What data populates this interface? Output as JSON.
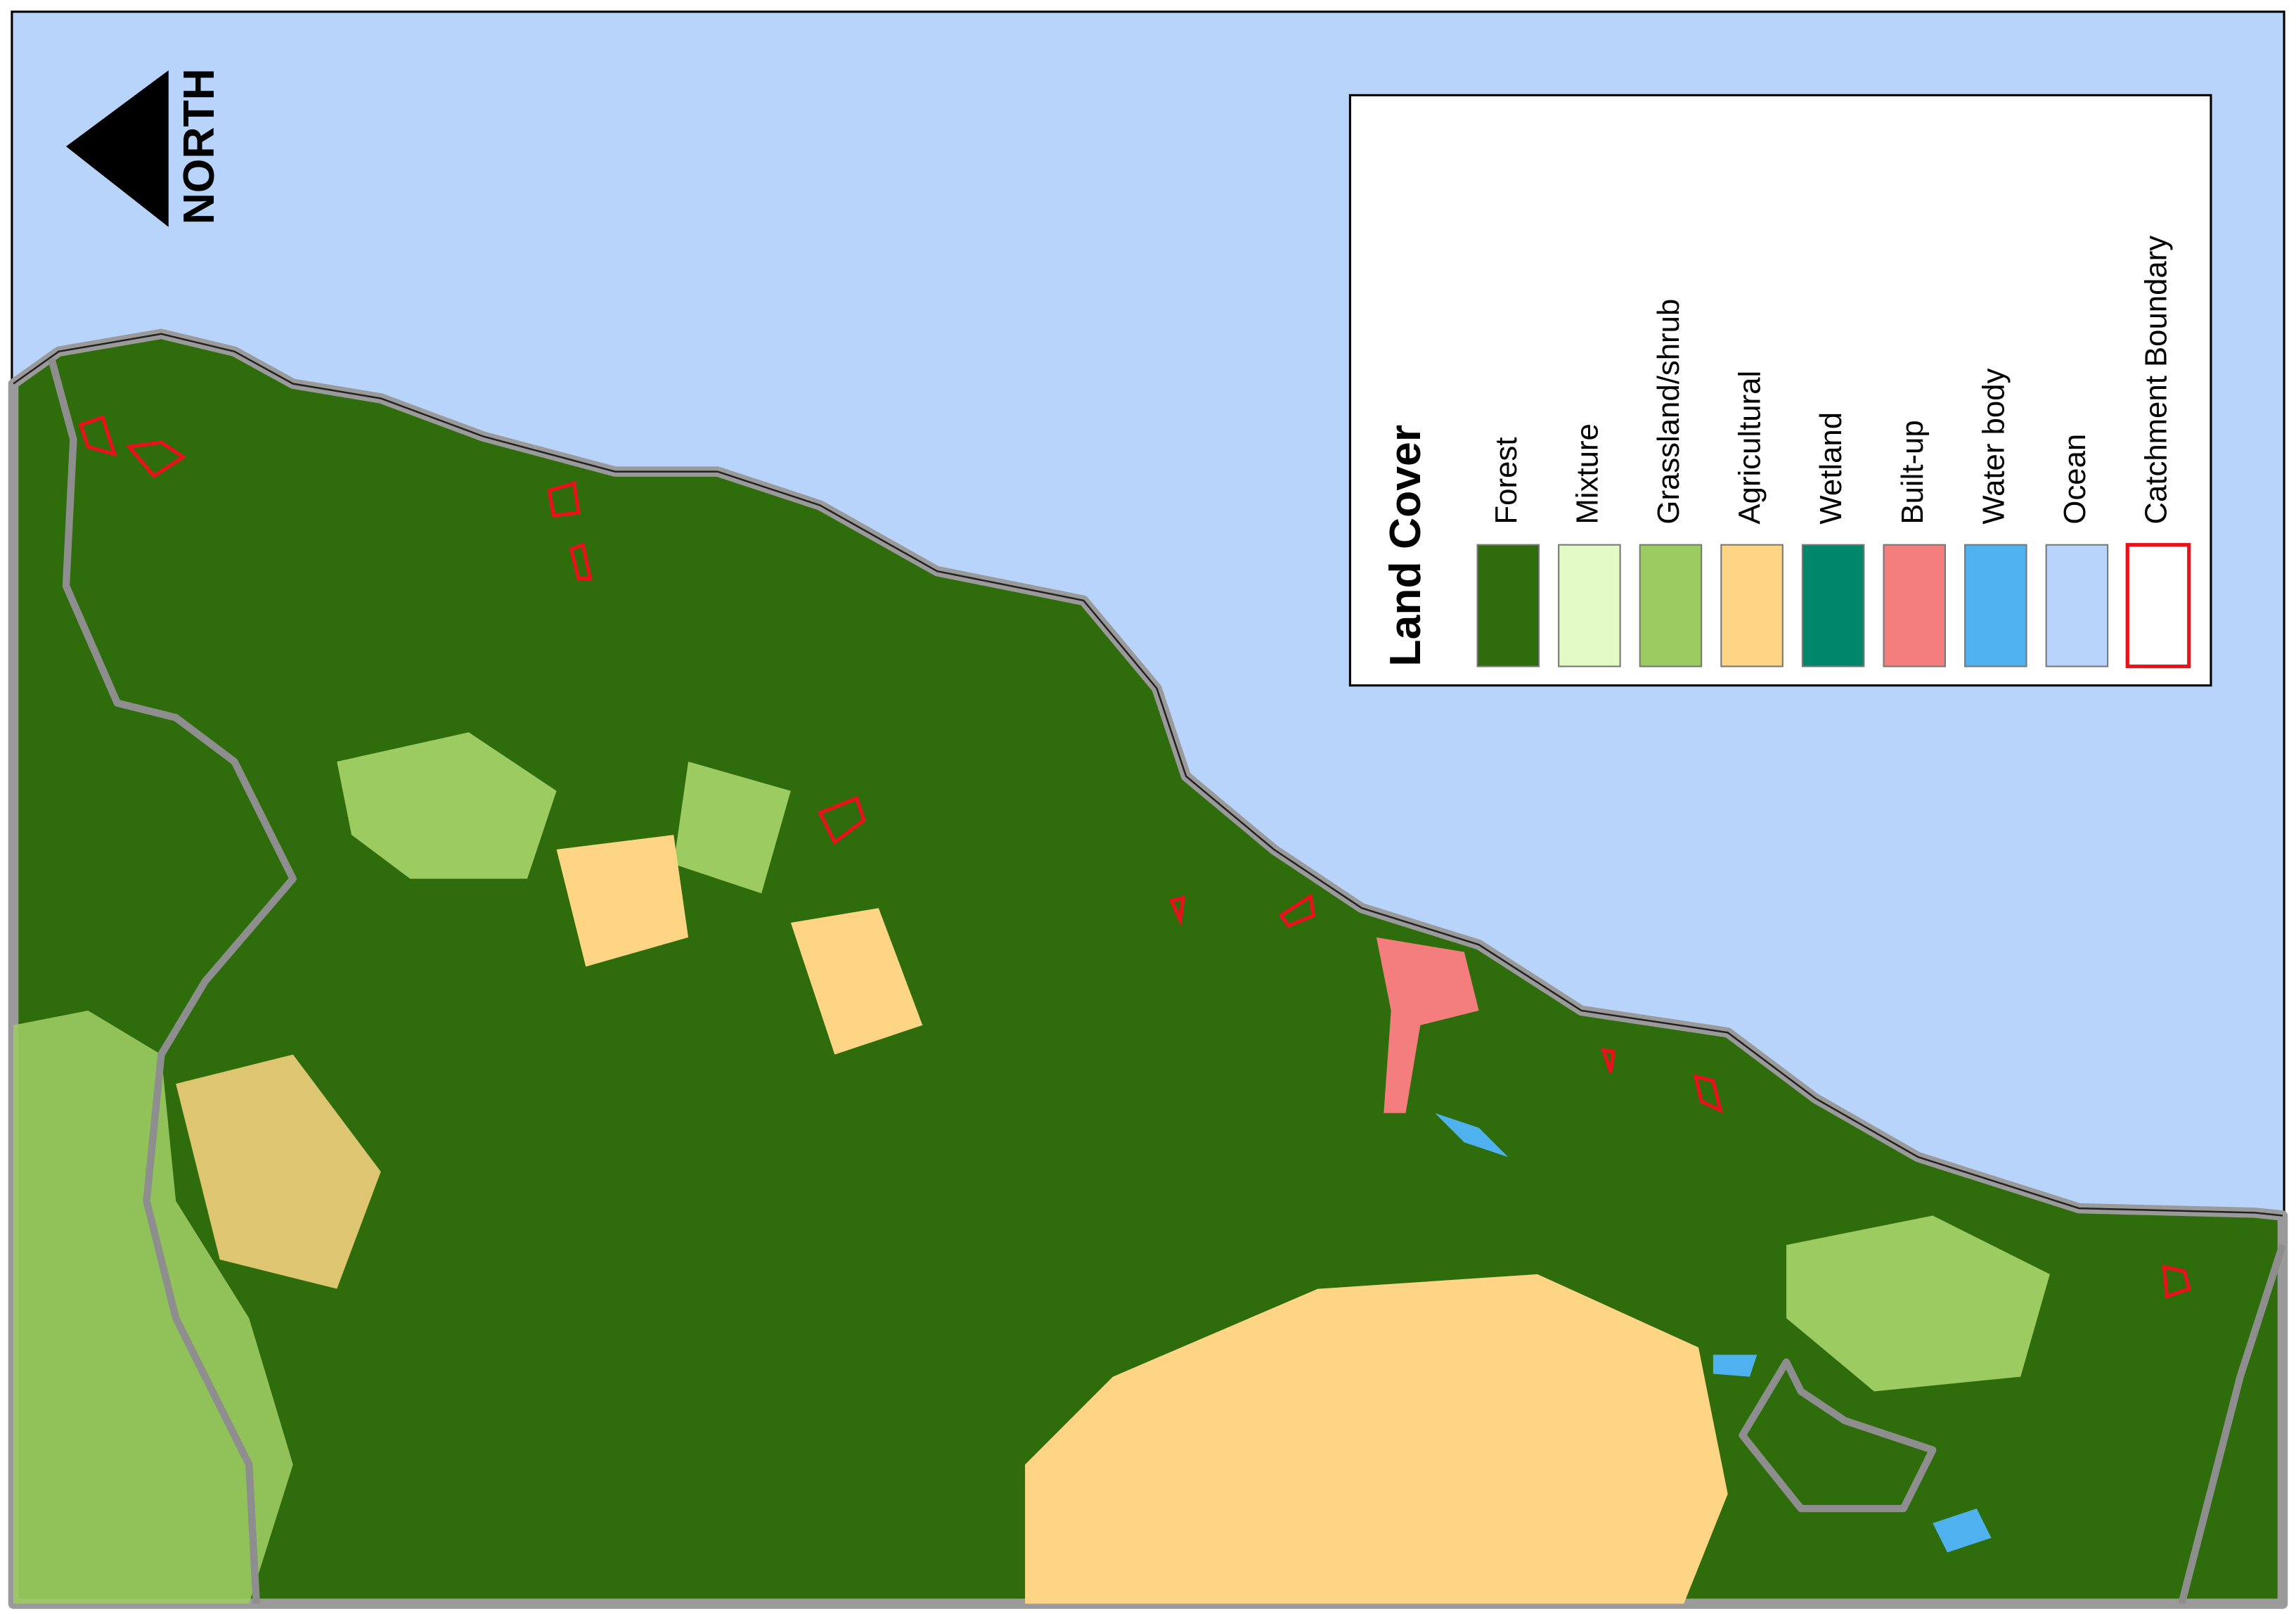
{
  "north_arrow": {
    "label": "NORTH"
  },
  "legend": {
    "title": "Land Cover",
    "items": [
      {
        "label": "Forest",
        "color": "#2e6c0c"
      },
      {
        "label": "Mixture",
        "color": "#e2fbc4"
      },
      {
        "label": "Grassland/shrub",
        "color": "#9ccb62"
      },
      {
        "label": "Agricultural",
        "color": "#fdd584"
      },
      {
        "label": "Wetland",
        "color": "#00876b"
      },
      {
        "label": "Built-up",
        "color": "#f47e7e"
      },
      {
        "label": "Water body",
        "color": "#4fb2ef"
      },
      {
        "label": "Ocean",
        "color": "#b8d4fb"
      },
      {
        "label": "Catchment Boundary",
        "color": "#e8121a"
      }
    ]
  }
}
